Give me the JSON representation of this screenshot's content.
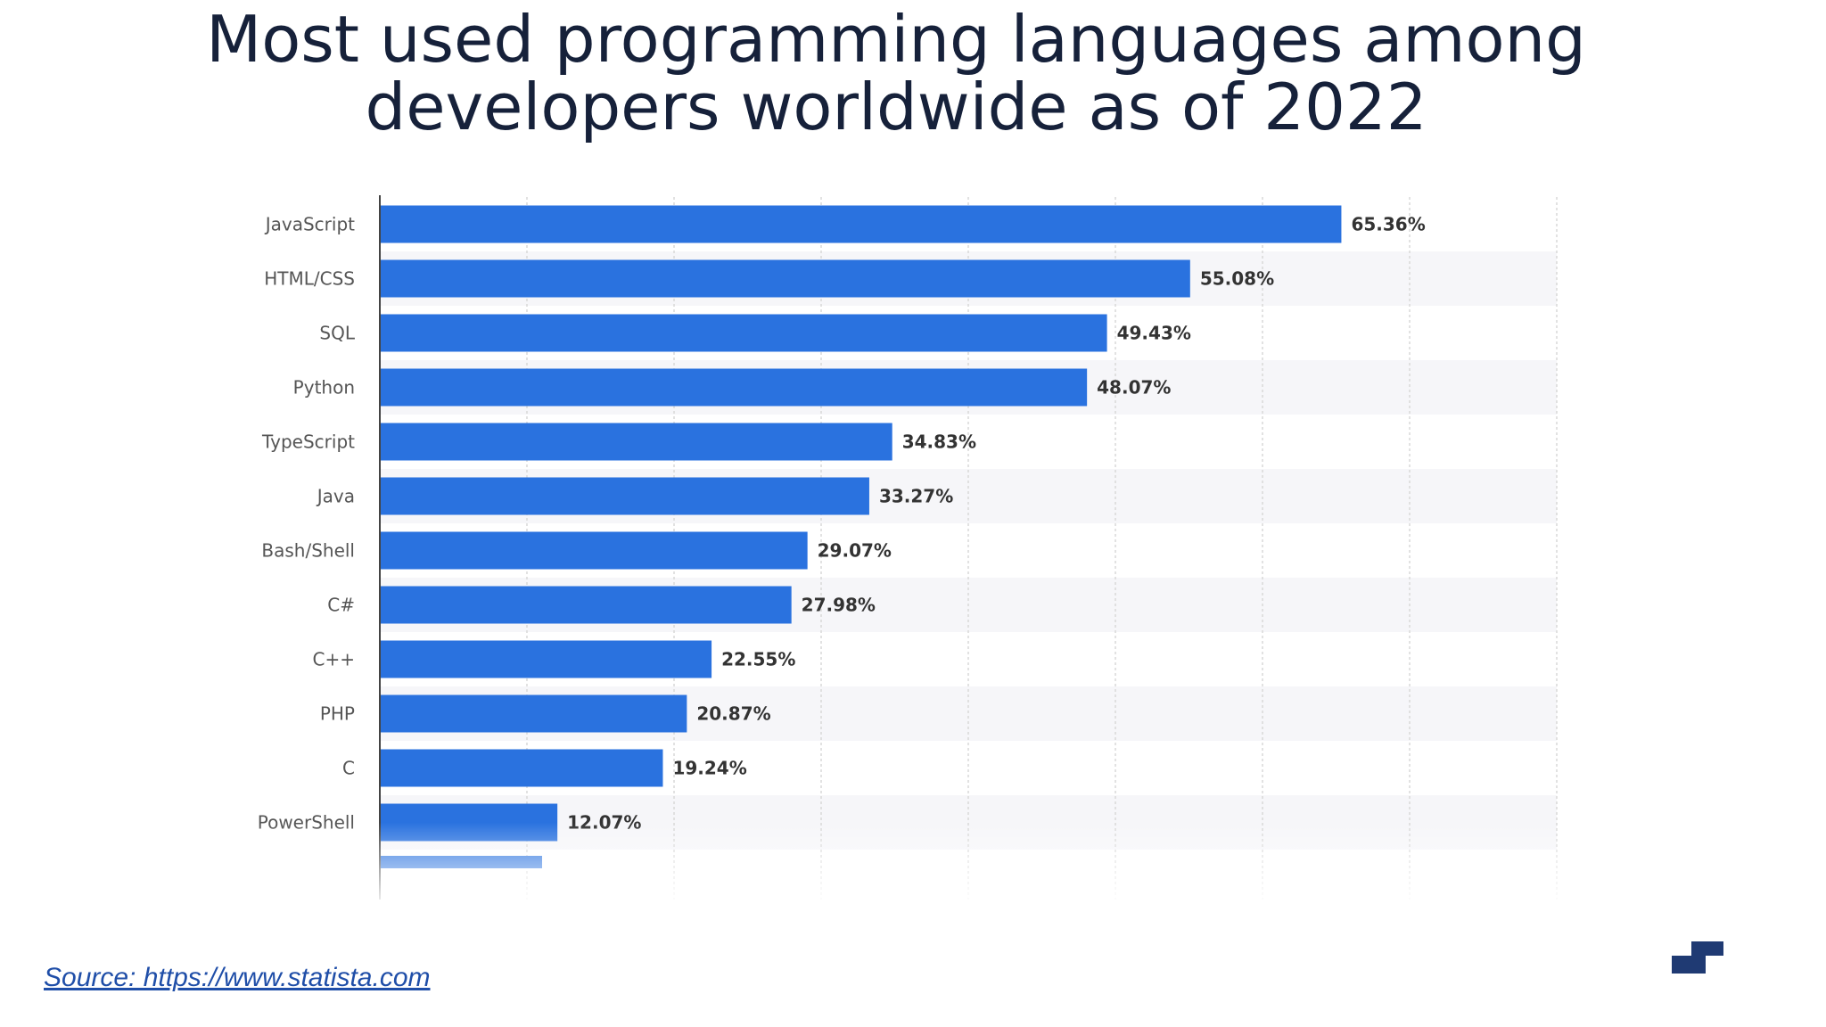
{
  "title_line1": "Most used programming languages among",
  "title_line2": "developers worldwide as of 2022",
  "source_text": "Source: https://www.statista.com",
  "colors": {
    "bar": "#2a72df",
    "title": "#16213a",
    "logo": "#1f3a73"
  },
  "logo_icon": "statista-logo-icon",
  "chart_data": {
    "type": "bar",
    "orientation": "horizontal",
    "title": "",
    "xlabel": "",
    "ylabel": "",
    "categories": [
      "JavaScript",
      "HTML/CSS",
      "SQL",
      "Python",
      "TypeScript",
      "Java",
      "Bash/Shell",
      "C#",
      "C++",
      "PHP",
      "C",
      "PowerShell"
    ],
    "values": [
      65.36,
      55.08,
      49.43,
      48.07,
      34.83,
      33.27,
      29.07,
      27.98,
      22.55,
      20.87,
      19.24,
      12.07
    ],
    "value_labels": [
      "65.36%",
      "55.08%",
      "49.43%",
      "48.07%",
      "34.83%",
      "33.27%",
      "29.07%",
      "27.98%",
      "22.55%",
      "20.87%",
      "19.24%",
      "12.07%"
    ],
    "xlim": [
      0,
      80
    ],
    "grid": true,
    "legend": "none"
  }
}
